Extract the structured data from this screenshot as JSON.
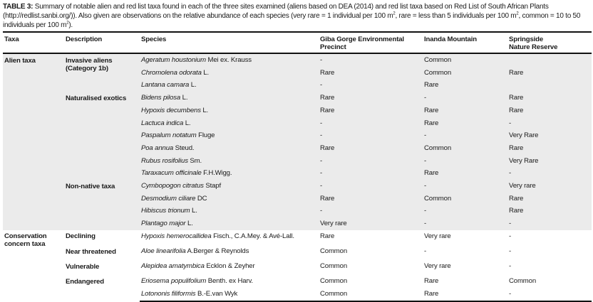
{
  "caption": {
    "label": "TABLE 3:",
    "parts": [
      " Summary of notable alien and red list taxa found in each of the three sites examined (aliens based on DEA (2014) and red list taxa based on Red List of South African Plants (http://redlist.sanbi.org/)). Also given are observations on the relative abundance of each species (very rare = 1 individual per 100 m",
      ", rare = less than 5 individuals per 100 m",
      ", common = 10 to 50 individuals per 100 m",
      ")."
    ],
    "sup": "2"
  },
  "columns": [
    "Taxa",
    "Description",
    "Species",
    "Giba Gorge Environmental Precinct",
    "Inanda Mountain",
    "Springside Nature Reserve"
  ],
  "groups": [
    {
      "taxa": "Alien taxa",
      "shaded": true,
      "descriptions": [
        {
          "label": "Invasive aliens (Category 1b)",
          "rows": [
            {
              "name": "Ageratum houstonium",
              "authority": "Mei ex. Krauss",
              "giba": "-",
              "inanda": "Common",
              "springside": ""
            },
            {
              "name": "Chromolena odorata",
              "authority": "L.",
              "giba": "Rare",
              "inanda": "Common",
              "springside": "Rare"
            },
            {
              "name": "Lantana camara",
              "authority": "L.",
              "giba": "-",
              "inanda": "Rare",
              "springside": ""
            }
          ]
        },
        {
          "label": "Naturalised exotics",
          "rows": [
            {
              "name": "Bidens pilosa",
              "authority": "L.",
              "giba": "Rare",
              "inanda": "-",
              "springside": "Rare"
            },
            {
              "name": "Hypoxis decumbens",
              "authority": "L.",
              "giba": "Rare",
              "inanda": "Rare",
              "springside": "Rare"
            },
            {
              "name": "Lactuca indica",
              "authority": "L.",
              "giba": "-",
              "inanda": "Rare",
              "springside": "-"
            },
            {
              "name": "Paspalum notatum",
              "authority": "Fluge",
              "giba": "-",
              "inanda": "-",
              "springside": "Very Rare"
            },
            {
              "name": "Poa annua",
              "authority": "Steud.",
              "giba": "Rare",
              "inanda": "Common",
              "springside": "Rare"
            },
            {
              "name": "Rubus rosifolius",
              "authority": "Sm.",
              "giba": "-",
              "inanda": "-",
              "springside": "Very Rare"
            },
            {
              "name": "Taraxacum officinale",
              "authority": "F.H.Wigg.",
              "giba": "-",
              "inanda": "Rare",
              "springside": "-"
            }
          ]
        },
        {
          "label": "Non-native taxa",
          "rows": [
            {
              "name": "Cymbopogon citratus",
              "authority": "Stapf",
              "giba": "-",
              "inanda": "-",
              "springside": "Very rare"
            },
            {
              "name": "Desmodium ciliare",
              "authority": "DC",
              "giba": "Rare",
              "inanda": "Common",
              "springside": "Rare"
            },
            {
              "name": "Hibiscus trionum",
              "authority": "L.",
              "giba": "-",
              "inanda": "-",
              "springside": "Rare"
            },
            {
              "name": "Plantago major",
              "authority": "L.",
              "giba": "Very rare",
              "inanda": "-",
              "springside": "-"
            }
          ]
        }
      ]
    },
    {
      "taxa": "Conservation concern taxa",
      "shaded": false,
      "descriptions": [
        {
          "label": "Declining",
          "rows": [
            {
              "name": "Hypoxis hemerocallidea",
              "authority": "Fisch., C.A.Mey. & Avé-Lall.",
              "giba": "Rare",
              "inanda": "Very rare",
              "springside": "-"
            }
          ]
        },
        {
          "label": "Near threatened",
          "rows": [
            {
              "name": "Aloe linearifolia",
              "authority": "A.Berger & Reynolds",
              "giba": "Common",
              "inanda": "-",
              "springside": "-"
            }
          ]
        },
        {
          "label": "Vulnerable",
          "rows": [
            {
              "name": "Alepidea amatymbica",
              "authority": "Ecklon & Zeyher",
              "giba": "Common",
              "inanda": "Very rare",
              "springside": "-"
            }
          ]
        },
        {
          "label": "Endangered",
          "rows": [
            {
              "name": "Eriosema populifolium",
              "authority": "Benth. ex Harv.",
              "giba": "Common",
              "inanda": "Rare",
              "springside": "Common"
            },
            {
              "name": "Lotononis filiformis",
              "authority": "B.-E.van Wyk",
              "giba": "Common",
              "inanda": "Rare",
              "springside": "-"
            }
          ]
        }
      ]
    }
  ]
}
